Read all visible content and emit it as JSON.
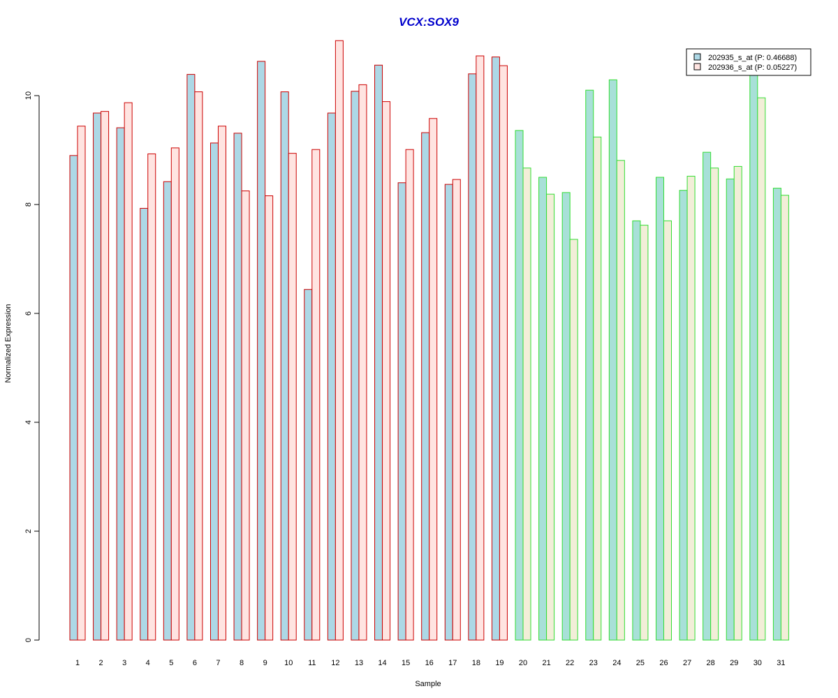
{
  "chart_data": {
    "type": "bar",
    "title": "VCX:SOX9",
    "xlabel": "Sample",
    "ylabel": "Normalized Expression",
    "ylim": [
      0,
      11
    ],
    "yticks": [
      0,
      2,
      4,
      6,
      8,
      10
    ],
    "categories": [
      "1",
      "2",
      "3",
      "4",
      "5",
      "6",
      "7",
      "8",
      "9",
      "10",
      "11",
      "12",
      "13",
      "14",
      "15",
      "16",
      "17",
      "18",
      "19",
      "20",
      "21",
      "22",
      "23",
      "24",
      "25",
      "26",
      "27",
      "28",
      "29",
      "30",
      "31"
    ],
    "series": [
      {
        "name": "202935_s_at (P: 0.46688)",
        "values": [
          8.9,
          9.68,
          9.41,
          7.93,
          8.42,
          10.39,
          9.13,
          9.31,
          10.63,
          10.07,
          6.44,
          9.68,
          10.08,
          10.56,
          8.4,
          9.32,
          8.37,
          10.4,
          10.71,
          9.36,
          8.5,
          8.22,
          10.1,
          10.29,
          7.7,
          8.5,
          8.26,
          8.96,
          8.47,
          10.39,
          8.3
        ]
      },
      {
        "name": "202936_s_at (P: 0.05227)",
        "values": [
          9.44,
          9.71,
          9.87,
          8.93,
          9.04,
          10.07,
          9.44,
          8.25,
          8.16,
          8.94,
          9.01,
          11.01,
          10.2,
          9.89,
          9.01,
          9.58,
          8.46,
          10.73,
          10.55,
          8.67,
          8.19,
          7.36,
          9.24,
          8.81,
          7.62,
          7.7,
          8.52,
          8.67,
          8.7,
          9.96,
          8.17
        ]
      }
    ],
    "group_split_after": 19,
    "legend_position": "top-right",
    "grid": false,
    "colors": {
      "title": "#0000CC",
      "fill_series1": "#ADD8E6",
      "fill_series2": "#FFE4E1",
      "group1_border": "#CC0000",
      "group2_border": "#33DD33",
      "group2_fill_series1": "#A8E0D8",
      "group2_fill_series2": "#F2EED8",
      "legend_fill_series1": "#ADD8E6",
      "legend_fill_series2": "#FFE4E1"
    }
  }
}
